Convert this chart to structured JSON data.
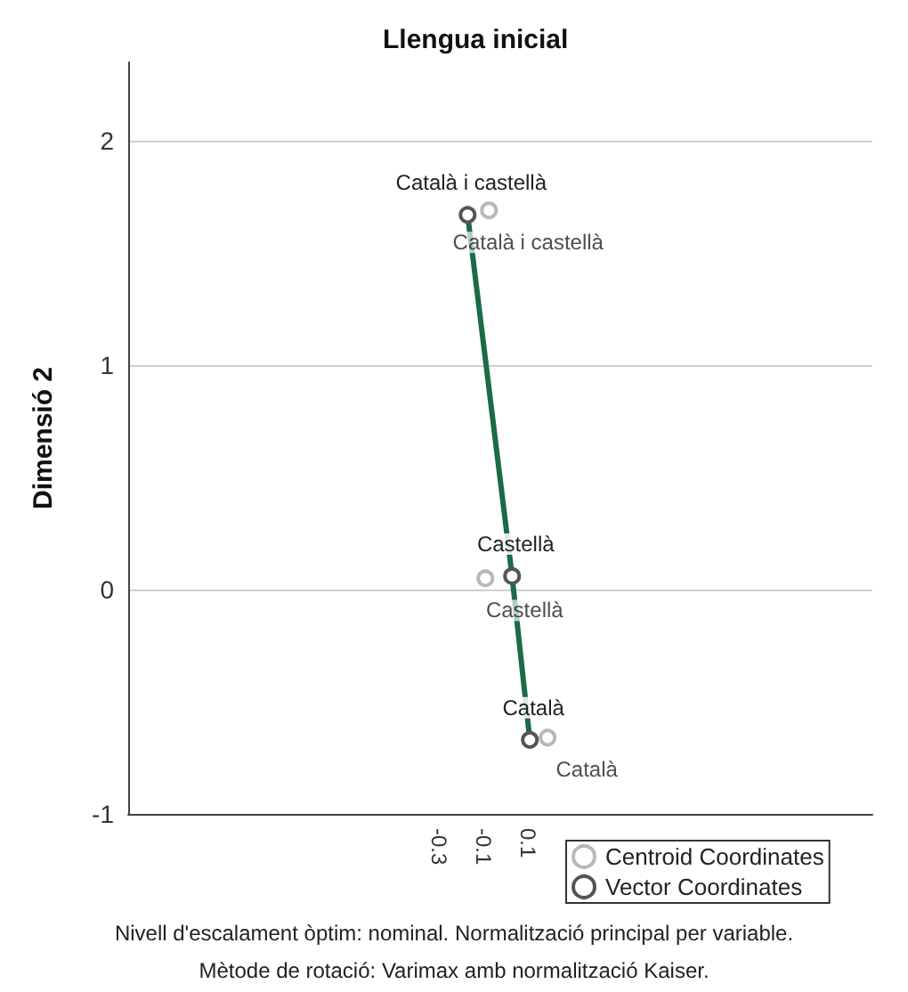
{
  "chart_data": {
    "type": "scatter",
    "title": "Llengua inicial",
    "ylabel": "Dimensió 2",
    "xlim": [
      -1.7,
      1.65
    ],
    "ylim": [
      -1,
      2.35
    ],
    "xticks": [
      -0.3,
      -0.1,
      0.1
    ],
    "yticks": [
      -1,
      0,
      1,
      2
    ],
    "grid": "y",
    "legend": "bottom right",
    "marker": "circle",
    "series": [
      {
        "name": "Centroid Coordinates",
        "color": "#a6a6a6",
        "x": [
          -0.076,
          -0.092,
          0.188
        ],
        "values": [
          1.69,
          0.05,
          -0.66
        ],
        "value_labels": [
          "Català i castellà",
          "Castellà",
          "Català"
        ]
      },
      {
        "name": "Vector Coordinates",
        "type": "line",
        "color": "#1b6b47",
        "x": [
          -0.172,
          0.028,
          0.108
        ],
        "values": [
          1.67,
          0.06,
          -0.67
        ],
        "value_labels": [
          "Català i castellà",
          "Castellà",
          "Català"
        ]
      }
    ],
    "annotations": [
      "Nivell d'escalament òptim: nominal. Normalització principal per variable.",
      "Mètode de rotació: Varimax amb normalització Kaiser."
    ]
  }
}
